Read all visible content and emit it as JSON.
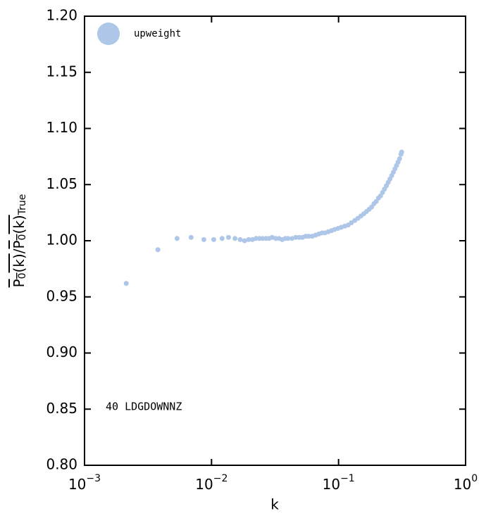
{
  "chart_data": {
    "type": "scatter",
    "xlabel": "k",
    "ylabel_parts": [
      "P",
      "0",
      "(k)",
      "/",
      "P",
      "0",
      "(k)",
      "True"
    ],
    "annotation": "40 LDGDOWNNZ",
    "xscale": "log",
    "xlim": [
      0.001,
      1
    ],
    "ylim": [
      0.8,
      1.2
    ],
    "xticks": [
      {
        "value": 0.001,
        "label": "10",
        "exponent": "−3"
      },
      {
        "value": 0.01,
        "label": "10",
        "exponent": "−2"
      },
      {
        "value": 0.1,
        "label": "10",
        "exponent": "−1"
      },
      {
        "value": 1,
        "label": "10",
        "exponent": "0"
      }
    ],
    "yticks": [
      {
        "value": 0.8,
        "label": "0.80"
      },
      0.85,
      {
        "value": 0.9,
        "label": "0.90"
      },
      0.95,
      {
        "value": 1.0,
        "label": "1.00"
      },
      1.05,
      {
        "value": 1.1,
        "label": "1.10"
      },
      1.15,
      {
        "value": 1.2,
        "label": "1.20"
      }
    ],
    "legend_position": "upper left",
    "series": [
      {
        "name": "upweight",
        "color": "#aec7e8",
        "x": [
          0.00213,
          0.00378,
          0.00535,
          0.0069,
          0.0087,
          0.0104,
          0.0121,
          0.0136,
          0.0153,
          0.0168,
          0.0182,
          0.0196,
          0.021,
          0.0224,
          0.0238,
          0.0252,
          0.0268,
          0.0284,
          0.03,
          0.032,
          0.034,
          0.036,
          0.038,
          0.04,
          0.043,
          0.046,
          0.049,
          0.052,
          0.055,
          0.058,
          0.062,
          0.066,
          0.07,
          0.074,
          0.078,
          0.083,
          0.088,
          0.093,
          0.099,
          0.105,
          0.112,
          0.119,
          0.126,
          0.134,
          0.142,
          0.15,
          0.158,
          0.166,
          0.174,
          0.182,
          0.19,
          0.198,
          0.206,
          0.214,
          0.222,
          0.23,
          0.238,
          0.246,
          0.254,
          0.262,
          0.27,
          0.278,
          0.286,
          0.294,
          0.302,
          0.31,
          0.314
        ],
        "values": [
          0.962,
          0.992,
          1.002,
          1.003,
          1.001,
          1.001,
          1.002,
          1.003,
          1.002,
          1.001,
          1.0,
          1.001,
          1.001,
          1.002,
          1.002,
          1.002,
          1.002,
          1.002,
          1.003,
          1.002,
          1.002,
          1.001,
          1.002,
          1.002,
          1.002,
          1.003,
          1.003,
          1.003,
          1.004,
          1.004,
          1.004,
          1.005,
          1.006,
          1.007,
          1.007,
          1.008,
          1.009,
          1.01,
          1.011,
          1.012,
          1.013,
          1.014,
          1.016,
          1.018,
          1.02,
          1.022,
          1.024,
          1.026,
          1.028,
          1.03,
          1.033,
          1.035,
          1.038,
          1.04,
          1.043,
          1.046,
          1.049,
          1.052,
          1.055,
          1.058,
          1.061,
          1.064,
          1.067,
          1.07,
          1.073,
          1.077,
          1.079
        ]
      }
    ]
  }
}
